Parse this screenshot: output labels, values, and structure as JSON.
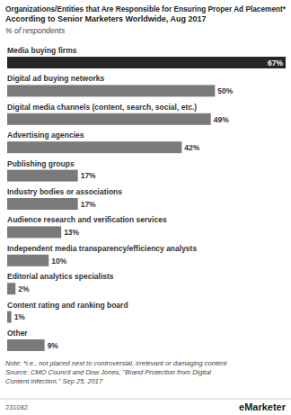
{
  "chart_data": {
    "type": "bar",
    "orientation": "horizontal",
    "title": [
      "Organizations/Entities that Are Responsible for Ensuring Proper Ad Placement*",
      "According to Senior Marketers Worldwide, Aug 2017"
    ],
    "subtitle": "% of respondents",
    "categories": [
      "Media buying firms",
      "Digital ad buying networks",
      "Digital media channels (content, search, social, etc.)",
      "Advertising agencies",
      "Publishing groups",
      "Industry bodies or associations",
      "Audience research and verification services",
      "Independent media transparency/efficiency analysts",
      "Editorial analytics specialists",
      "Content rating and ranking board",
      "Other"
    ],
    "values": [
      67,
      50,
      49,
      42,
      17,
      17,
      13,
      10,
      2,
      1,
      9
    ],
    "value_labels": [
      "67%",
      "50%",
      "49%",
      "42%",
      "17%",
      "17%",
      "13%",
      "10%",
      "2%",
      "1%",
      "9%"
    ],
    "data_labels": true,
    "tick_labels": false,
    "grid": false,
    "colors": [
      "#262626",
      "#7a7a7a",
      "#7a7a7a",
      "#7a7a7a",
      "#7a7a7a",
      "#7a7a7a",
      "#7a7a7a",
      "#7a7a7a",
      "#7a7a7a",
      "#7a7a7a",
      "#7a7a7a"
    ],
    "note": "Note: *i.e., not placed next to controversial, irrelevant or damaging content",
    "source": [
      "Source: CMO Council and Dow Jones, \"Brand Protection from Digital",
      "Content Infection,\" Sep 25, 2017"
    ],
    "chart_id": "231082",
    "brand": "eMarketer"
  }
}
